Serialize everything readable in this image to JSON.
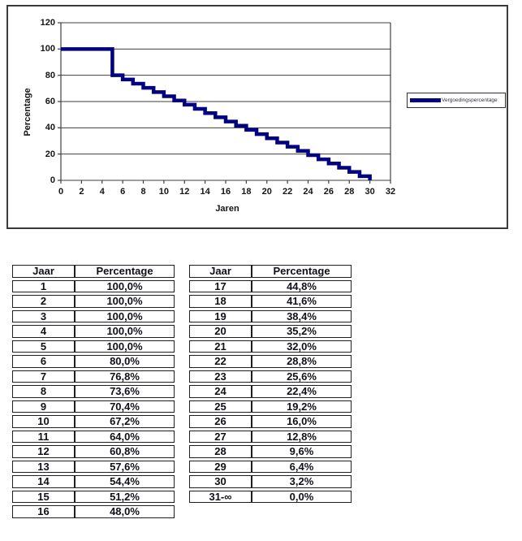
{
  "chart": {
    "y_axis_title": "Percentage",
    "x_axis_title": "Jaren",
    "legend_label": "Vergoedingspercentage",
    "line_color": "#000080",
    "axis_color": "#3f3f3f",
    "y_ticks": [
      0,
      20,
      40,
      60,
      80,
      100,
      120
    ],
    "x_ticks": [
      0,
      2,
      4,
      6,
      8,
      10,
      12,
      14,
      16,
      18,
      20,
      22,
      24,
      26,
      28,
      30,
      32
    ]
  },
  "chart_data": {
    "type": "line",
    "step": "year n holds its value over x interval [n-1, n]; line drops to 0 at x=30",
    "title": "",
    "xlabel": "Jaren",
    "ylabel": "Percentage",
    "xlim": [
      0,
      32
    ],
    "ylim": [
      0,
      120
    ],
    "grid": "horizontal",
    "legend_position": "right",
    "series": [
      {
        "name": "Vergoedingspercentage",
        "x": [
          1,
          2,
          3,
          4,
          5,
          6,
          7,
          8,
          9,
          10,
          11,
          12,
          13,
          14,
          15,
          16,
          17,
          18,
          19,
          20,
          21,
          22,
          23,
          24,
          25,
          26,
          27,
          28,
          29,
          30
        ],
        "values": [
          100,
          100,
          100,
          100,
          100,
          80,
          76.8,
          73.6,
          70.4,
          67.2,
          64,
          60.8,
          57.6,
          54.4,
          51.2,
          48,
          44.8,
          41.6,
          38.4,
          35.2,
          32,
          28.8,
          25.6,
          22.4,
          19.2,
          16,
          12.8,
          9.6,
          6.4,
          3.2
        ]
      }
    ]
  },
  "tables": {
    "left": {
      "headers": [
        "Jaar",
        "Percentage"
      ],
      "rows": [
        [
          "1",
          "100,0%"
        ],
        [
          "2",
          "100,0%"
        ],
        [
          "3",
          "100,0%"
        ],
        [
          "4",
          "100,0%"
        ],
        [
          "5",
          "100,0%"
        ],
        [
          "6",
          "80,0%"
        ],
        [
          "7",
          "76,8%"
        ],
        [
          "8",
          "73,6%"
        ],
        [
          "9",
          "70,4%"
        ],
        [
          "10",
          "67,2%"
        ],
        [
          "11",
          "64,0%"
        ],
        [
          "12",
          "60,8%"
        ],
        [
          "13",
          "57,6%"
        ],
        [
          "14",
          "54,4%"
        ],
        [
          "15",
          "51,2%"
        ],
        [
          "16",
          "48,0%"
        ]
      ]
    },
    "right": {
      "headers": [
        "Jaar",
        "Percentage"
      ],
      "rows": [
        [
          "17",
          "44,8%"
        ],
        [
          "18",
          "41,6%"
        ],
        [
          "19",
          "38,4%"
        ],
        [
          "20",
          "35,2%"
        ],
        [
          "21",
          "32,0%"
        ],
        [
          "22",
          "28,8%"
        ],
        [
          "23",
          "25,6%"
        ],
        [
          "24",
          "22,4%"
        ],
        [
          "25",
          "19,2%"
        ],
        [
          "26",
          "16,0%"
        ],
        [
          "27",
          "12,8%"
        ],
        [
          "28",
          "9,6%"
        ],
        [
          "29",
          "6,4%"
        ],
        [
          "30",
          "3,2%"
        ],
        [
          "31-∞",
          "0,0%"
        ]
      ]
    }
  }
}
